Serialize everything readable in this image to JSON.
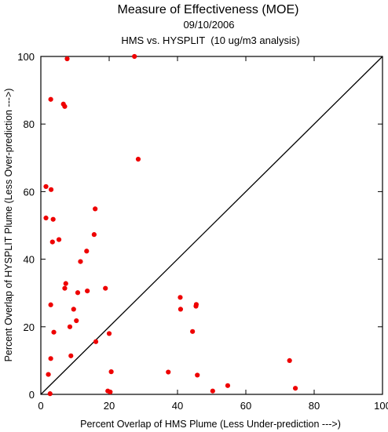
{
  "chart_data": {
    "type": "scatter",
    "title": "Measure of Effectiveness (MOE)",
    "subtitle_date": "09/10/2006",
    "subtitle_analysis": "HMS vs. HYSPLIT  (10 ug/m3 analysis)",
    "xlabel": "Percent Overlap of HMS Plume (Less Under-prediction --->)",
    "ylabel": "Percent Overlap of HYSPLIT Plume (Less Over-prediction --->)",
    "xlim": [
      0,
      100
    ],
    "ylim": [
      0,
      100
    ],
    "xticks": [
      0,
      20,
      40,
      60,
      80,
      100
    ],
    "yticks": [
      0,
      20,
      40,
      60,
      80,
      100
    ],
    "xtick_labels": [
      "0",
      "20",
      "40",
      "60",
      "80",
      "100"
    ],
    "ytick_labels": [
      "0",
      "20",
      "40",
      "60",
      "80",
      "100"
    ],
    "grid": false,
    "reference_line": "diagonal y = x",
    "point_color": "#ee0000",
    "line_color": "#000000",
    "points": [
      {
        "x": 7.7,
        "y": 99.3
      },
      {
        "x": 27.4,
        "y": 100.0
      },
      {
        "x": 2.9,
        "y": 87.3
      },
      {
        "x": 6.6,
        "y": 85.9
      },
      {
        "x": 7.0,
        "y": 85.2
      },
      {
        "x": 28.5,
        "y": 69.6
      },
      {
        "x": 1.5,
        "y": 61.5
      },
      {
        "x": 3.0,
        "y": 60.6
      },
      {
        "x": 15.9,
        "y": 54.9
      },
      {
        "x": 1.5,
        "y": 52.2
      },
      {
        "x": 3.6,
        "y": 51.8
      },
      {
        "x": 15.6,
        "y": 47.3
      },
      {
        "x": 5.3,
        "y": 45.8
      },
      {
        "x": 3.4,
        "y": 45.1
      },
      {
        "x": 13.4,
        "y": 42.4
      },
      {
        "x": 11.6,
        "y": 39.3
      },
      {
        "x": 7.3,
        "y": 32.8
      },
      {
        "x": 7.0,
        "y": 31.4
      },
      {
        "x": 18.9,
        "y": 31.4
      },
      {
        "x": 13.6,
        "y": 30.6
      },
      {
        "x": 10.8,
        "y": 30.1
      },
      {
        "x": 40.8,
        "y": 28.7
      },
      {
        "x": 45.5,
        "y": 26.6
      },
      {
        "x": 45.4,
        "y": 26.1
      },
      {
        "x": 2.9,
        "y": 26.5
      },
      {
        "x": 9.6,
        "y": 25.2
      },
      {
        "x": 40.9,
        "y": 25.2
      },
      {
        "x": 10.4,
        "y": 21.8
      },
      {
        "x": 8.5,
        "y": 20.0
      },
      {
        "x": 44.4,
        "y": 18.6
      },
      {
        "x": 20.0,
        "y": 18.0
      },
      {
        "x": 3.8,
        "y": 18.4
      },
      {
        "x": 16.1,
        "y": 15.6
      },
      {
        "x": 8.8,
        "y": 11.4
      },
      {
        "x": 2.9,
        "y": 10.6
      },
      {
        "x": 72.8,
        "y": 10.0
      },
      {
        "x": 20.6,
        "y": 6.7
      },
      {
        "x": 37.3,
        "y": 6.6
      },
      {
        "x": 2.2,
        "y": 5.9
      },
      {
        "x": 45.8,
        "y": 5.7
      },
      {
        "x": 54.7,
        "y": 2.6
      },
      {
        "x": 74.5,
        "y": 1.8
      },
      {
        "x": 19.6,
        "y": 1.0
      },
      {
        "x": 20.3,
        "y": 0.7
      },
      {
        "x": 50.3,
        "y": 1.0
      },
      {
        "x": 2.7,
        "y": 0.2
      }
    ]
  }
}
